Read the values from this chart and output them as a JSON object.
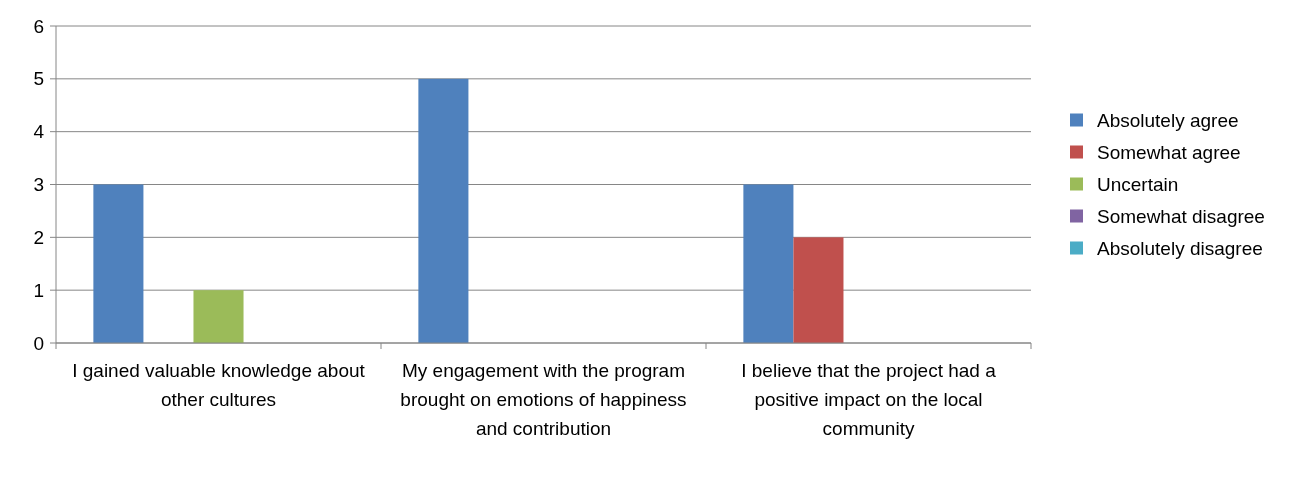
{
  "chart_data": {
    "type": "bar",
    "categories": [
      "I gained valuable knowledge about other cultures",
      "My engagement with the program brought on emotions of happiness and contribution",
      "I believe that the project had a positive impact on the local community"
    ],
    "series": [
      {
        "name": "Absolutely agree",
        "color": "#4f81bd",
        "values": [
          3,
          5,
          3
        ]
      },
      {
        "name": "Somewhat agree",
        "color": "#c0504d",
        "values": [
          0,
          0,
          2
        ]
      },
      {
        "name": "Uncertain",
        "color": "#9bbb59",
        "values": [
          1,
          0,
          0
        ]
      },
      {
        "name": "Somewhat disagree",
        "color": "#8064a2",
        "values": [
          0,
          0,
          0
        ]
      },
      {
        "name": "Absolutely disagree",
        "color": "#4bacc6",
        "values": [
          0,
          0,
          0
        ]
      }
    ],
    "ylim": [
      0,
      6
    ],
    "yticks": [
      0,
      1,
      2,
      3,
      4,
      5,
      6
    ],
    "grid": "y",
    "legend": "right"
  }
}
